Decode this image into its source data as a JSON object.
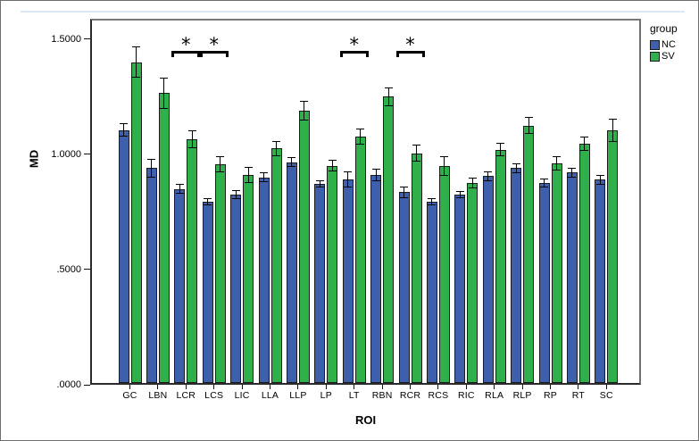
{
  "window": {
    "accent_color": "#dce8f6"
  },
  "chart_data": {
    "type": "bar",
    "title": "",
    "xlabel": "ROI",
    "ylabel": "MD",
    "categories": [
      "GC",
      "LBN",
      "LCR",
      "LCS",
      "LIC",
      "LLA",
      "LLP",
      "LP",
      "LT",
      "RBN",
      "RCR",
      "RCS",
      "RIC",
      "RLA",
      "RLP",
      "RP",
      "RT",
      "SC"
    ],
    "series": [
      {
        "name": "NC",
        "color": "#3E5FAC",
        "values": [
          1.105,
          0.94,
          0.85,
          0.795,
          0.825,
          0.9,
          0.965,
          0.87,
          0.89,
          0.91,
          0.835,
          0.795,
          0.825,
          0.905,
          0.94,
          0.875,
          0.92,
          0.89
        ],
        "errors": [
          0.03,
          0.041,
          0.023,
          0.016,
          0.021,
          0.021,
          0.021,
          0.016,
          0.035,
          0.026,
          0.026,
          0.016,
          0.017,
          0.022,
          0.021,
          0.019,
          0.023,
          0.022
        ]
      },
      {
        "name": "SV",
        "color": "#2FB04A",
        "values": [
          1.4,
          1.265,
          1.065,
          0.955,
          0.91,
          1.025,
          1.19,
          0.95,
          1.075,
          1.25,
          1.005,
          0.95,
          0.875,
          1.02,
          1.125,
          0.96,
          1.045,
          1.105
        ],
        "errors": [
          0.067,
          0.067,
          0.038,
          0.035,
          0.036,
          0.032,
          0.042,
          0.026,
          0.035,
          0.04,
          0.037,
          0.043,
          0.022,
          0.03,
          0.035,
          0.032,
          0.032,
          0.051
        ]
      }
    ],
    "error_bars": true,
    "yticks": [
      {
        "label": ".0000",
        "value": 0.0
      },
      {
        "label": ".5000",
        "value": 0.5
      },
      {
        "label": "1.0000",
        "value": 1.0
      },
      {
        "label": "1.5000",
        "value": 1.5
      }
    ],
    "ylim": [
      0,
      1.588
    ],
    "grid": false,
    "legend": {
      "title": "group",
      "position": "top-right"
    },
    "significance": {
      "marker": "*",
      "rois": [
        "LCR",
        "LCS",
        "LT",
        "RCR"
      ]
    }
  }
}
